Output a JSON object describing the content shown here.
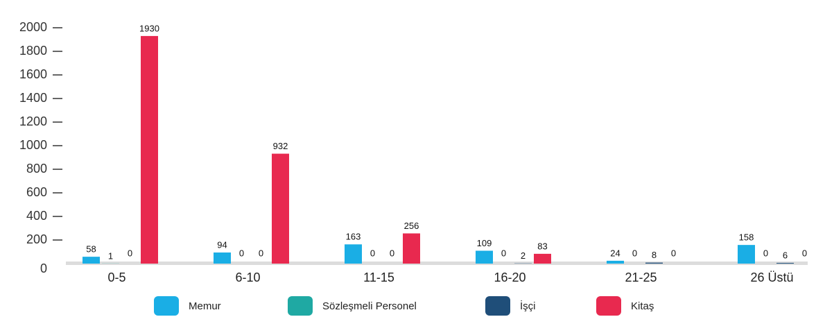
{
  "chart_data": {
    "type": "bar",
    "categories": [
      "0-5",
      "6-10",
      "11-15",
      "16-20",
      "21-25",
      "26 Üstü"
    ],
    "series": [
      {
        "name": "Memur",
        "color": "#1aaee5",
        "values": [
          58,
          94,
          163,
          109,
          24,
          158
        ]
      },
      {
        "name": "Sözleşmeli Personel",
        "color": "#1fa9a3",
        "values": [
          1,
          0,
          0,
          0,
          0,
          0
        ]
      },
      {
        "name": "İşçi",
        "color": "#1f4e79",
        "values": [
          0,
          0,
          0,
          2,
          8,
          6
        ]
      },
      {
        "name": "Kitaş",
        "color": "#e8294f",
        "values": [
          1930,
          932,
          256,
          83,
          0,
          0
        ]
      }
    ],
    "ylim": [
      0,
      2000
    ],
    "yticks": [
      0,
      200,
      400,
      600,
      800,
      1000,
      1200,
      1400,
      1600,
      1800,
      2000
    ],
    "grid": false,
    "legend": "bottom"
  }
}
